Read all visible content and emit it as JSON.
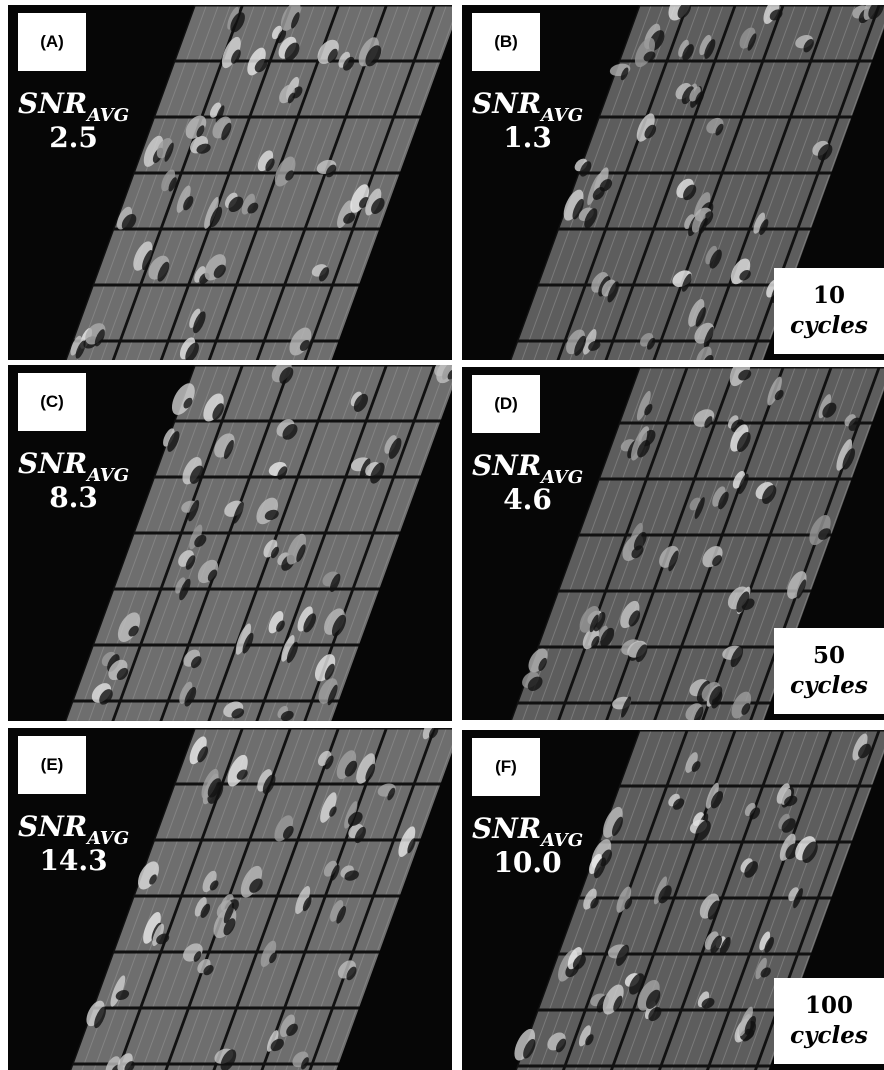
{
  "panels": [
    {
      "label": "(A)",
      "snr": {
        "name": "SNR",
        "subscript": "AVG",
        "value": "2.5"
      }
    },
    {
      "label": "(B)",
      "snr": {
        "name": "SNR",
        "subscript": "AVG",
        "value": "1.3"
      },
      "cycles": {
        "count": "10",
        "unit": "cycles"
      }
    },
    {
      "label": "(C)",
      "snr": {
        "name": "SNR",
        "subscript": "AVG",
        "value": "8.3"
      }
    },
    {
      "label": "(D)",
      "snr": {
        "name": "SNR",
        "subscript": "AVG",
        "value": "4.6"
      },
      "cycles": {
        "count": "50",
        "unit": "cycles"
      }
    },
    {
      "label": "(E)",
      "snr": {
        "name": "SNR",
        "subscript": "AVG",
        "value": "14.3"
      }
    },
    {
      "label": "(F)",
      "snr": {
        "name": "SNR",
        "subscript": "AVG",
        "value": "10.0"
      },
      "cycles": {
        "count": "100",
        "unit": "cycles"
      }
    }
  ]
}
